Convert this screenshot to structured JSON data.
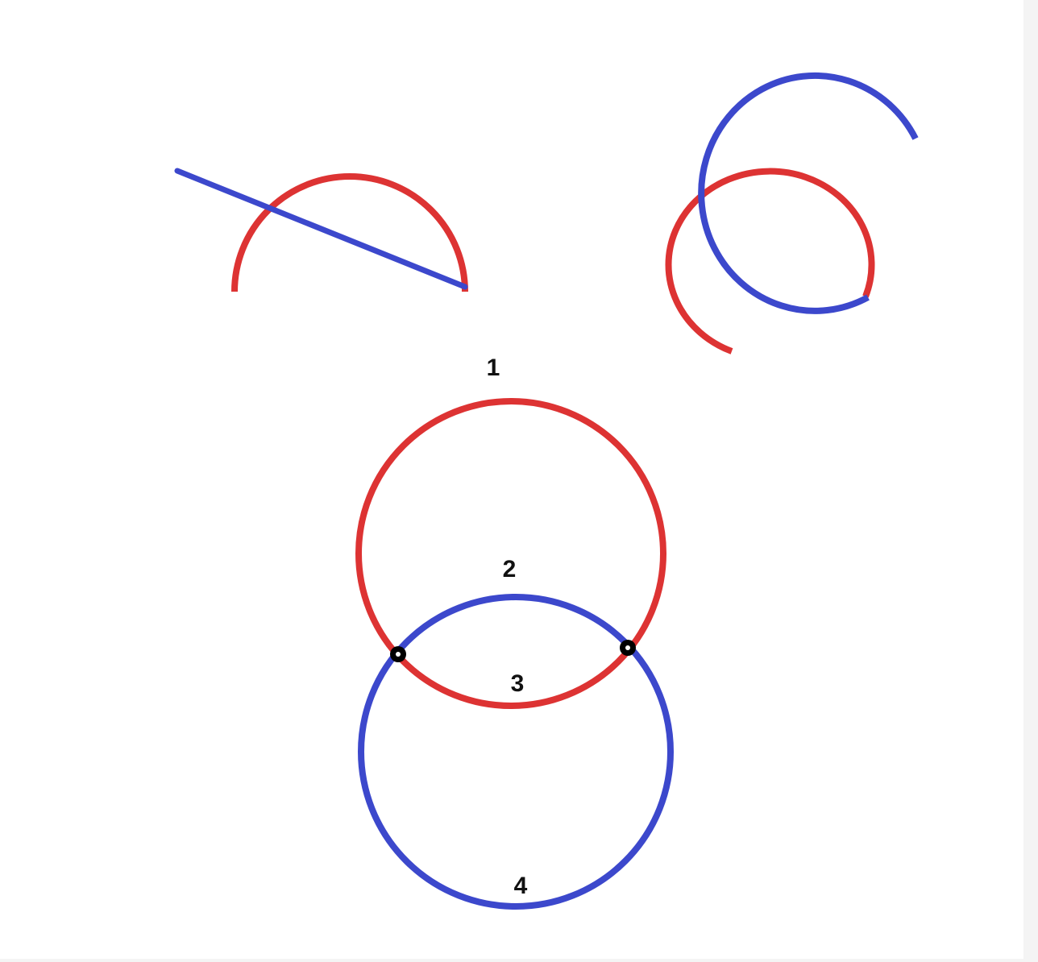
{
  "colors": {
    "red": "#dd3333",
    "blue": "#3c48cc",
    "point": "#000000",
    "background": "#ffffff"
  },
  "labels": {
    "one": "1",
    "two": "2",
    "three": "3",
    "four": "4"
  }
}
